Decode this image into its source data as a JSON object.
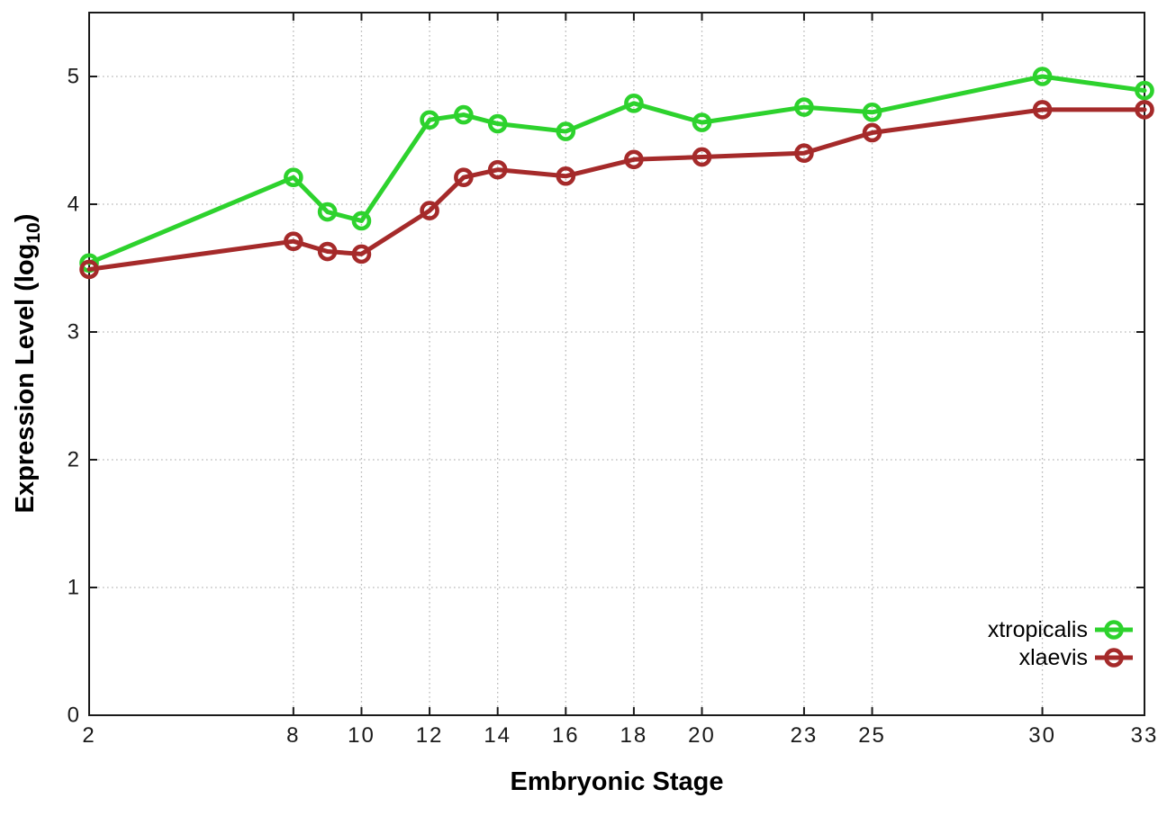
{
  "chart_data": {
    "type": "line",
    "title": "",
    "xlabel": "Embryonic Stage",
    "ylabel": "Expression Level (log10)",
    "ylabel_parts": {
      "prefix": "Expression Level (log",
      "sub": "10",
      "suffix": ")"
    },
    "xlim": [
      2,
      33
    ],
    "ylim": [
      0,
      5.5
    ],
    "xticks": [
      2,
      8,
      10,
      12,
      14,
      16,
      18,
      20,
      23,
      25,
      30,
      33
    ],
    "yticks": [
      0,
      1,
      2,
      3,
      4,
      5
    ],
    "grid": true,
    "legend_position": "bottom-right",
    "x": [
      2,
      8,
      9,
      10,
      12,
      13,
      14,
      16,
      18,
      20,
      23,
      25,
      30,
      33
    ],
    "series": [
      {
        "name": "xtropicalis",
        "color": "#2dd22d",
        "values": [
          3.54,
          4.21,
          3.94,
          3.87,
          4.66,
          4.7,
          4.63,
          4.57,
          4.79,
          4.64,
          4.76,
          4.72,
          5.0,
          4.89
        ]
      },
      {
        "name": "xlaevis",
        "color": "#a52a2a",
        "values": [
          3.49,
          3.71,
          3.63,
          3.61,
          3.95,
          4.21,
          4.27,
          4.22,
          4.35,
          4.37,
          4.4,
          4.56,
          4.74,
          4.74
        ]
      }
    ],
    "colors": {
      "grid": "#b8b8b8",
      "axis": "#1a1a1a",
      "text": "#000000",
      "background": "#ffffff"
    }
  }
}
